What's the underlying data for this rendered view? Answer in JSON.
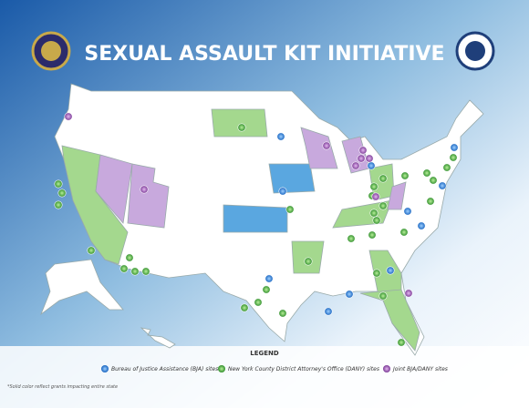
{
  "header": {
    "title": "SEXUAL ASSAULT KIT INITIATIVE"
  },
  "legend": {
    "title": "LEGEND",
    "items": [
      {
        "label": "Bureau of Justice Assistance (BJA) sites"
      },
      {
        "label": "New York County District Attorney's Office (DANY) sites"
      },
      {
        "label": "Joint BJA/DANY sites"
      }
    ]
  },
  "footnote": "*Solid color reflect grants impacting entire state"
}
